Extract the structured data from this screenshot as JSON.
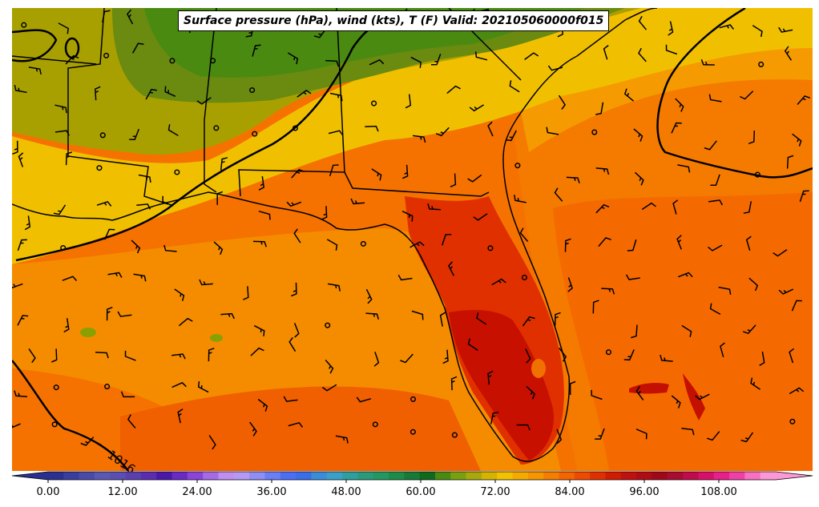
{
  "title": "Surface pressure (hPa), wind (kts), T (F) Valid: 202105060000f015",
  "isobar_label": "1016",
  "colorbar": {
    "ticks": [
      "0.00",
      "12.00",
      "24.00",
      "36.00",
      "48.00",
      "60.00",
      "72.00",
      "84.00",
      "96.00",
      "108.00"
    ],
    "colors": [
      "#2b2f8f",
      "#3a3d9e",
      "#4b4aa8",
      "#5a58b2",
      "#5a4fb0",
      "#5b3fae",
      "#5a2db0",
      "#4a18a8",
      "#6a2bc4",
      "#8a44d8",
      "#a66ae6",
      "#bf8ff0",
      "#b59af5",
      "#8e8ef5",
      "#6a7ef5",
      "#4c6ef5",
      "#3a6ee8",
      "#3a8cd8",
      "#3aa0c8",
      "#2e9e9e",
      "#2a9a7a",
      "#249860",
      "#1e8c48",
      "#177a36",
      "#0f6a1e",
      "#4a8a10",
      "#7aa010",
      "#a8a80c",
      "#d4b400",
      "#f2c200",
      "#f5aa00",
      "#f59500",
      "#f57d00",
      "#f56400",
      "#ef4a00",
      "#e03000",
      "#d01c00",
      "#c01010",
      "#b00c14",
      "#a0081a",
      "#a80c30",
      "#c00c4a",
      "#d8106a",
      "#e8208a",
      "#f040a8",
      "#f870c2",
      "#fc98d6"
    ]
  },
  "colors": {
    "warm": "#f58c00",
    "warmer": "#f57200",
    "hot": "#d42a00",
    "hottest": "#c41000",
    "mild": "#f0c000",
    "cool": "#a8a000",
    "green": "#4a8a10"
  }
}
